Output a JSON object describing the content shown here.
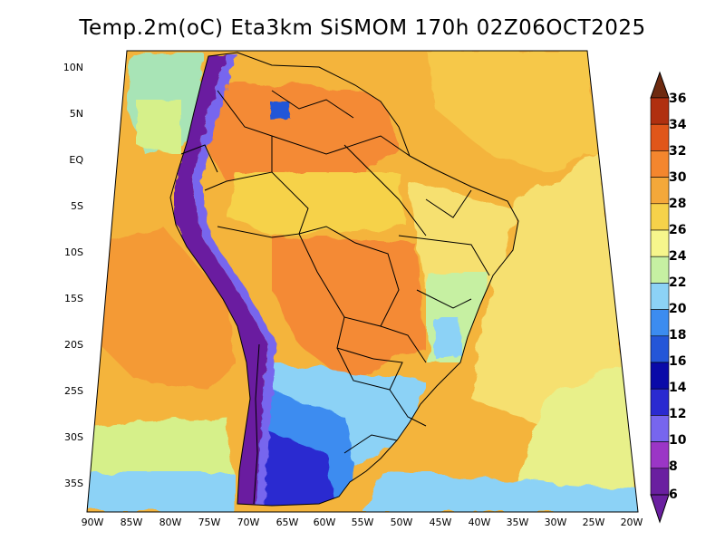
{
  "title": "Temp.2m(oC) Eta3km SiSMOM 170h 02Z06OCT2025",
  "lat_ticks": [
    "10N",
    "5N",
    "EQ",
    "5S",
    "10S",
    "15S",
    "20S",
    "25S",
    "30S",
    "35S"
  ],
  "lon_ticks": [
    "90W",
    "85W",
    "80W",
    "75W",
    "70W",
    "65W",
    "60W",
    "55W",
    "50W",
    "45W",
    "40W",
    "35W",
    "30W",
    "25W",
    "20W"
  ],
  "colorbar": {
    "labels": [
      "6",
      "8",
      "10",
      "12",
      "14",
      "16",
      "18",
      "20",
      "22",
      "24",
      "26",
      "28",
      "30",
      "32",
      "34",
      "36"
    ],
    "colors": [
      "#6a1fa0",
      "#9b36c6",
      "#7766ee",
      "#2a2ad0",
      "#0a0aa8",
      "#2456d8",
      "#3c8cf0",
      "#8cd2f6",
      "#c6f0a2",
      "#f6f68c",
      "#f6d24a",
      "#f4a83a",
      "#f4862e",
      "#e0561a",
      "#b03010",
      "#6e2a10"
    ]
  },
  "map_colors": {
    "ocean_north": "#f6c84a",
    "ocean_main": "#f4b43c",
    "ocean_warm": "#f49a36",
    "ocean_south_cool": "#d6f08a",
    "ocean_far_south": "#8cd2f6",
    "land_hot": "#f48a34",
    "land_warm": "#f4b43c",
    "andes_cold": "#6a1fa0",
    "south_cool": "#3c8cf0",
    "south_cold": "#2a2ad0"
  }
}
